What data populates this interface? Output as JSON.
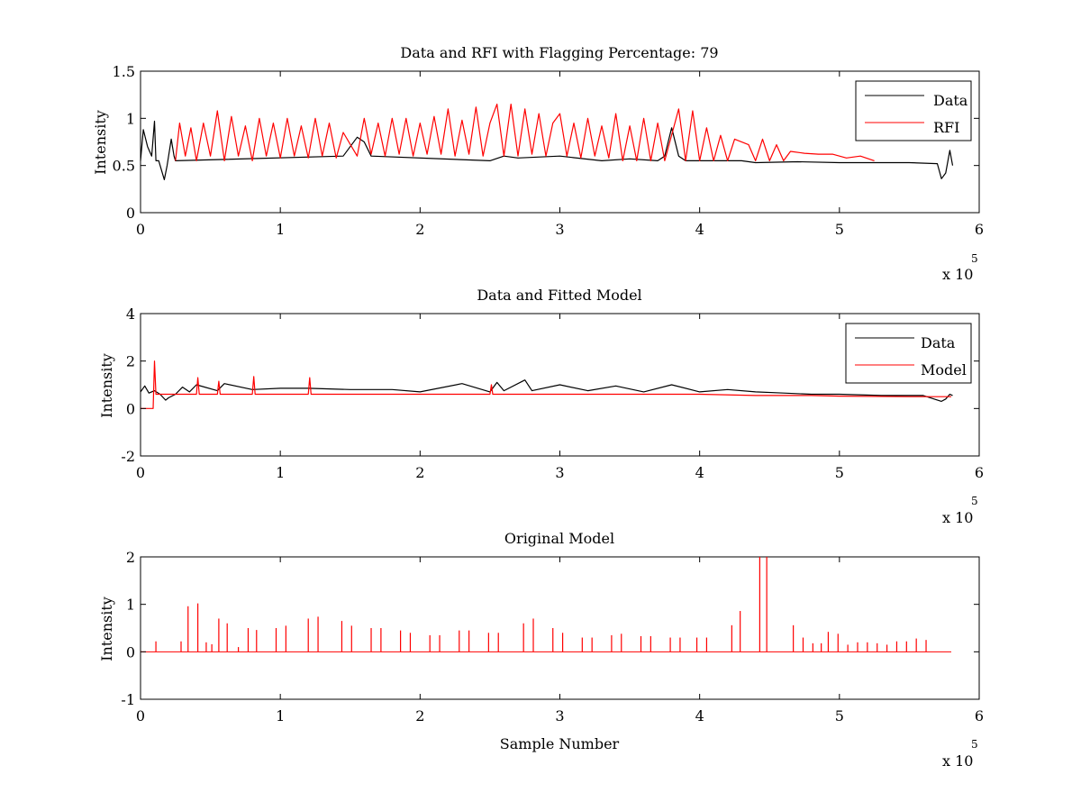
{
  "chart_data": [
    {
      "type": "line",
      "title": "Data and RFI with Flagging Percentage: 79",
      "xlabel": "",
      "ylabel": "Intensity",
      "xlim": [
        0,
        6
      ],
      "ylim": [
        0,
        1.5
      ],
      "x_ticks": [
        "0",
        "1",
        "2",
        "3",
        "4",
        "5",
        "6"
      ],
      "y_ticks": [
        "0",
        "0.5",
        "1",
        "1.5"
      ],
      "x_exponent_base": "x 10",
      "x_exponent_power": "5",
      "grid": false,
      "legend_position": "top-right",
      "series": [
        {
          "name": "Data",
          "color": "#000000",
          "x": [
            0.0,
            0.02,
            0.05,
            0.08,
            0.1,
            0.11,
            0.13,
            0.15,
            0.17,
            0.19,
            0.22,
            0.24,
            0.25,
            1.45,
            1.5,
            1.55,
            1.6,
            1.65,
            2.5,
            2.6,
            2.7,
            3.0,
            3.3,
            3.5,
            3.7,
            3.75,
            3.8,
            3.85,
            3.9,
            4.3,
            4.4,
            4.7,
            5.0,
            5.2,
            5.5,
            5.7,
            5.73,
            5.76,
            5.79,
            5.81
          ],
          "y": [
            0.55,
            0.88,
            0.7,
            0.6,
            0.97,
            0.55,
            0.55,
            0.45,
            0.35,
            0.5,
            0.78,
            0.6,
            0.55,
            0.6,
            0.7,
            0.8,
            0.75,
            0.6,
            0.55,
            0.6,
            0.58,
            0.6,
            0.55,
            0.57,
            0.55,
            0.6,
            0.9,
            0.6,
            0.55,
            0.55,
            0.53,
            0.54,
            0.53,
            0.53,
            0.53,
            0.52,
            0.36,
            0.42,
            0.66,
            0.5
          ]
        },
        {
          "name": "RFI",
          "color": "#ff0000",
          "x": [
            0.25,
            0.28,
            0.32,
            0.36,
            0.4,
            0.45,
            0.5,
            0.55,
            0.6,
            0.65,
            0.7,
            0.75,
            0.8,
            0.85,
            0.9,
            0.95,
            1.0,
            1.05,
            1.1,
            1.15,
            1.2,
            1.25,
            1.3,
            1.35,
            1.4,
            1.45,
            1.55,
            1.6,
            1.65,
            1.7,
            1.75,
            1.8,
            1.85,
            1.9,
            1.95,
            2.0,
            2.05,
            2.1,
            2.15,
            2.2,
            2.25,
            2.3,
            2.35,
            2.4,
            2.45,
            2.5,
            2.55,
            2.6,
            2.65,
            2.7,
            2.75,
            2.8,
            2.85,
            2.9,
            2.95,
            3.0,
            3.05,
            3.1,
            3.15,
            3.2,
            3.25,
            3.3,
            3.35,
            3.4,
            3.45,
            3.5,
            3.55,
            3.6,
            3.65,
            3.7,
            3.75,
            3.85,
            3.9,
            3.95,
            4.0,
            4.05,
            4.1,
            4.15,
            4.2,
            4.25,
            4.35,
            4.4,
            4.45,
            4.5,
            4.55,
            4.6,
            4.65,
            4.75,
            4.85,
            4.95,
            5.05,
            5.15,
            5.25
          ],
          "y": [
            0.55,
            0.95,
            0.6,
            0.9,
            0.55,
            0.95,
            0.6,
            1.08,
            0.55,
            1.02,
            0.6,
            0.92,
            0.55,
            1.0,
            0.6,
            0.95,
            0.58,
            1.0,
            0.6,
            0.92,
            0.58,
            1.0,
            0.6,
            0.95,
            0.58,
            0.85,
            0.6,
            1.0,
            0.62,
            0.95,
            0.6,
            1.0,
            0.62,
            1.0,
            0.6,
            0.95,
            0.62,
            1.02,
            0.62,
            1.1,
            0.6,
            0.98,
            0.62,
            1.12,
            0.6,
            0.95,
            1.15,
            0.6,
            1.15,
            0.6,
            1.1,
            0.62,
            1.05,
            0.6,
            0.95,
            1.05,
            0.6,
            0.95,
            0.58,
            1.0,
            0.6,
            0.92,
            0.58,
            1.05,
            0.55,
            0.92,
            0.55,
            1.0,
            0.55,
            0.95,
            0.55,
            1.1,
            0.55,
            1.08,
            0.55,
            0.9,
            0.55,
            0.82,
            0.55,
            0.78,
            0.72,
            0.55,
            0.78,
            0.55,
            0.72,
            0.55,
            0.65,
            0.63,
            0.62,
            0.62,
            0.58,
            0.6,
            0.55
          ]
        }
      ]
    },
    {
      "type": "line",
      "title": "Data and Fitted Model",
      "xlabel": "",
      "ylabel": "Intensity",
      "xlim": [
        0,
        6
      ],
      "ylim": [
        -2,
        4
      ],
      "x_ticks": [
        "0",
        "1",
        "2",
        "3",
        "4",
        "5",
        "6"
      ],
      "y_ticks": [
        "-2",
        "0",
        "2",
        "4"
      ],
      "x_exponent_base": "x 10",
      "x_exponent_power": "5",
      "grid": false,
      "legend_position": "top-right",
      "series": [
        {
          "name": "Data",
          "color": "#000000",
          "x": [
            0.0,
            0.03,
            0.06,
            0.1,
            0.14,
            0.18,
            0.2,
            0.25,
            0.3,
            0.35,
            0.4,
            0.55,
            0.6,
            0.8,
            1.0,
            1.2,
            1.5,
            1.8,
            2.0,
            2.3,
            2.5,
            2.55,
            2.6,
            2.75,
            2.8,
            3.0,
            3.2,
            3.4,
            3.6,
            3.8,
            4.0,
            4.2,
            4.4,
            4.6,
            4.8,
            5.0,
            5.3,
            5.6,
            5.73,
            5.76,
            5.79,
            5.81
          ],
          "y": [
            0.7,
            0.95,
            0.65,
            0.75,
            0.6,
            0.35,
            0.45,
            0.6,
            0.9,
            0.7,
            1.0,
            0.75,
            1.05,
            0.8,
            0.85,
            0.85,
            0.8,
            0.8,
            0.7,
            1.05,
            0.7,
            1.1,
            0.75,
            1.2,
            0.75,
            1.0,
            0.75,
            0.95,
            0.7,
            1.0,
            0.7,
            0.8,
            0.7,
            0.65,
            0.6,
            0.6,
            0.55,
            0.55,
            0.3,
            0.4,
            0.6,
            0.55
          ]
        },
        {
          "name": "Model",
          "color": "#ff0000",
          "x": [
            0.0,
            0.06,
            0.09,
            0.1,
            0.11,
            0.15,
            0.4,
            0.41,
            0.42,
            0.55,
            0.56,
            0.57,
            0.8,
            0.81,
            0.82,
            1.2,
            1.21,
            1.22,
            2.5,
            2.51,
            2.52,
            3.0,
            3.5,
            4.0,
            4.4,
            4.5,
            4.8,
            5.0,
            5.5,
            5.8
          ],
          "y": [
            0.0,
            0.0,
            0.0,
            2.0,
            0.6,
            0.6,
            0.6,
            1.3,
            0.6,
            0.6,
            1.15,
            0.6,
            0.6,
            1.35,
            0.6,
            0.6,
            1.3,
            0.6,
            0.6,
            1.0,
            0.6,
            0.6,
            0.6,
            0.6,
            0.55,
            0.55,
            0.55,
            0.52,
            0.5,
            0.5
          ]
        }
      ]
    },
    {
      "type": "line",
      "title": "Original Model",
      "xlabel": "Sample Number",
      "ylabel": "Intensity",
      "xlim": [
        0,
        6
      ],
      "ylim": [
        -1,
        2
      ],
      "x_ticks": [
        "0",
        "1",
        "2",
        "3",
        "4",
        "5",
        "6"
      ],
      "y_ticks": [
        "-1",
        "0",
        "1",
        "2"
      ],
      "x_exponent_base": "x 10",
      "x_exponent_power": "5",
      "grid": false,
      "legend_position": "none",
      "baseline": {
        "x_start": 0.0,
        "x_end": 5.8,
        "y": 0.0
      },
      "series": [
        {
          "name": "",
          "color": "#ff0000",
          "spike_x": [
            0.11,
            0.29,
            0.34,
            0.41,
            0.47,
            0.51,
            0.56,
            0.62,
            0.7,
            0.77,
            0.83,
            0.97,
            1.04,
            1.2,
            1.27,
            1.44,
            1.51,
            1.65,
            1.72,
            1.86,
            1.93,
            2.07,
            2.14,
            2.28,
            2.35,
            2.49,
            2.56,
            2.74,
            2.81,
            2.95,
            3.02,
            3.16,
            3.23,
            3.37,
            3.44,
            3.58,
            3.65,
            3.79,
            3.86,
            3.98,
            4.05,
            4.23,
            4.29,
            4.43,
            4.48,
            4.67,
            4.74,
            4.81,
            4.87,
            4.92,
            4.99,
            5.06,
            5.13,
            5.2,
            5.27,
            5.34,
            5.41,
            5.48,
            5.55,
            5.62
          ],
          "spike_y": [
            0.22,
            0.22,
            0.96,
            1.02,
            0.2,
            0.16,
            0.7,
            0.6,
            0.1,
            0.5,
            0.46,
            0.5,
            0.55,
            0.7,
            0.74,
            0.65,
            0.55,
            0.5,
            0.5,
            0.45,
            0.4,
            0.35,
            0.35,
            0.45,
            0.45,
            0.4,
            0.4,
            0.6,
            0.7,
            0.5,
            0.4,
            0.3,
            0.3,
            0.35,
            0.38,
            0.33,
            0.33,
            0.3,
            0.3,
            0.3,
            0.3,
            0.56,
            0.86,
            2.0,
            2.0,
            0.56,
            0.3,
            0.18,
            0.18,
            0.42,
            0.38,
            0.15,
            0.2,
            0.2,
            0.18,
            0.15,
            0.22,
            0.22,
            0.28,
            0.25
          ]
        }
      ]
    }
  ]
}
